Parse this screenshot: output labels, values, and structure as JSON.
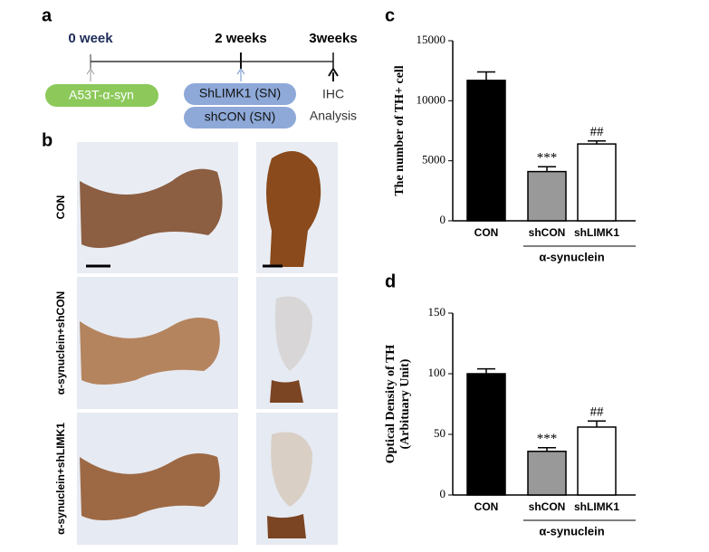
{
  "panels": {
    "a": "a",
    "b": "b",
    "c": "c",
    "d": "d"
  },
  "timeline": {
    "times": [
      "0 week",
      "2 weeks",
      "3weeks"
    ],
    "injection": "A53T-α-syn",
    "treatments": [
      "ShLIMK1 (SN)",
      "shCON (SN)"
    ],
    "endpoint": [
      "IHC",
      "Analysis"
    ]
  },
  "images": {
    "row_labels": [
      "CON",
      "α-synuclein+shCON",
      "α-synuclein+shLIMK1"
    ]
  },
  "chart_data": [
    {
      "type": "bar",
      "ylabel": [
        "The number of TH+ cell"
      ],
      "categories": [
        "CON",
        "shCON",
        "shLIMK1"
      ],
      "values": [
        11700,
        4100,
        6400
      ],
      "errors": [
        700,
        400,
        250
      ],
      "colors": [
        "#000000",
        "#999999",
        "#ffffff"
      ],
      "significance": [
        null,
        "***",
        "##"
      ],
      "group_label": "α-synuclein",
      "ylim": [
        0,
        15000
      ],
      "yticks": [
        0,
        5000,
        10000,
        15000
      ]
    },
    {
      "type": "bar",
      "ylabel": [
        "Optical Density of TH",
        "(Arbituary Unit)"
      ],
      "categories": [
        "CON",
        "shCON",
        "shLIMK1"
      ],
      "values": [
        100,
        36,
        56
      ],
      "errors": [
        4,
        3,
        5
      ],
      "colors": [
        "#000000",
        "#999999",
        "#ffffff"
      ],
      "significance": [
        null,
        "***",
        "##"
      ],
      "group_label": "α-synuclein",
      "ylim": [
        0,
        150
      ],
      "yticks": [
        0,
        50,
        100,
        150
      ]
    }
  ]
}
